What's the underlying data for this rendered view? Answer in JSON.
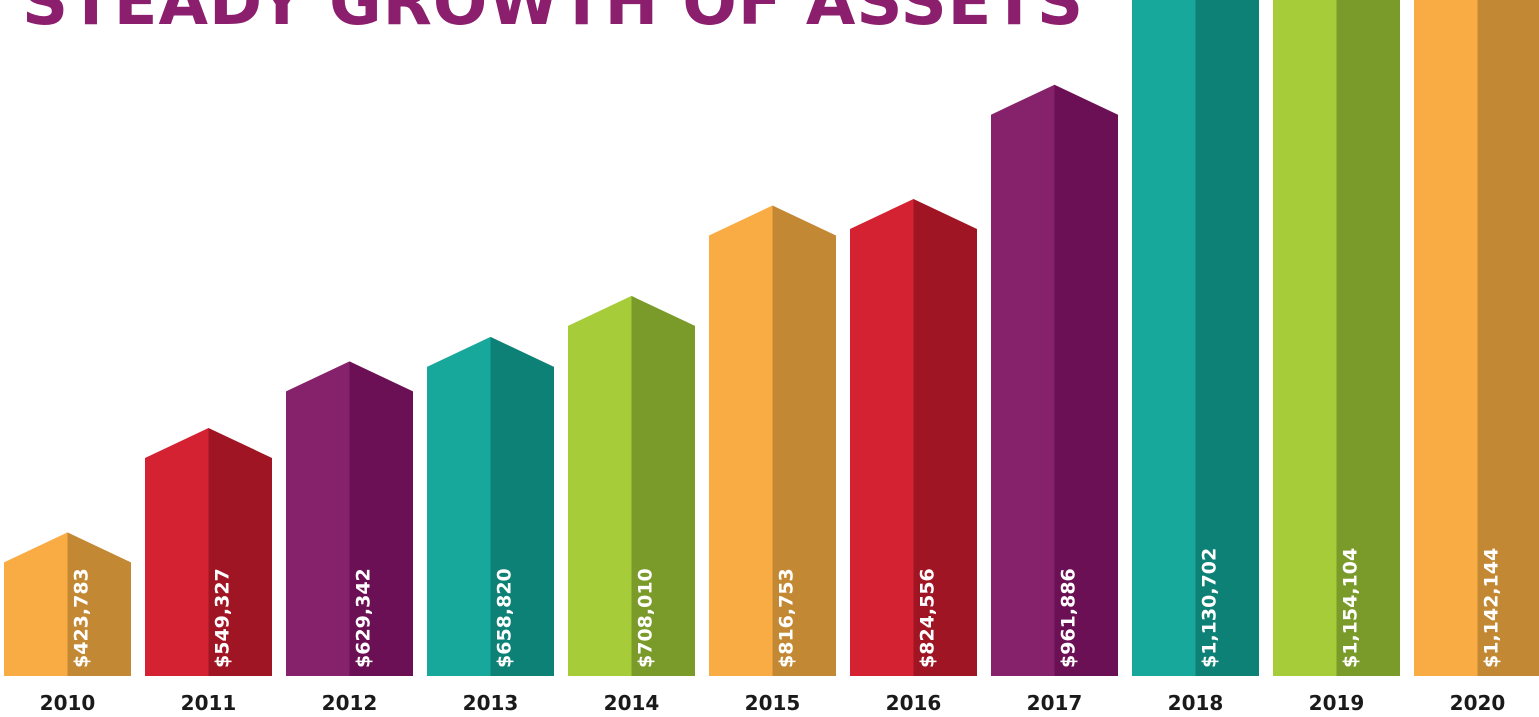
{
  "chart_data": {
    "type": "bar",
    "title": "STEADY GROWTH OF ASSETS",
    "categories": [
      "2010",
      "2011",
      "2012",
      "2013",
      "2014",
      "2015",
      "2016",
      "2017",
      "2018",
      "2019",
      "2020"
    ],
    "values": [
      423783,
      549327,
      629342,
      658820,
      708010,
      816753,
      824556,
      961886,
      1130702,
      1154104,
      1142144
    ],
    "value_labels": [
      "$423,783",
      "$549,327",
      "$629,342",
      "$658,820",
      "$708,010",
      "$816,753",
      "$824,556",
      "$961,886",
      "$1,130,702",
      "$1,154,104",
      "$1,142,144"
    ],
    "bar_colors": [
      {
        "light": "#F9AC43",
        "dark": "#C38833"
      },
      {
        "light": "#D42232",
        "dark": "#A01523"
      },
      {
        "light": "#86226C",
        "dark": "#6B1054"
      },
      {
        "light": "#17A79B",
        "dark": "#0E8176"
      },
      {
        "light": "#A6CC3A",
        "dark": "#7A9B2A"
      },
      {
        "light": "#F9AC43",
        "dark": "#C38833"
      },
      {
        "light": "#D42232",
        "dark": "#A01523"
      },
      {
        "light": "#86226C",
        "dark": "#6B1054"
      },
      {
        "light": "#17A79B",
        "dark": "#0E8176"
      },
      {
        "light": "#A6CC3A",
        "dark": "#7A9B2A"
      },
      {
        "light": "#F9AC43",
        "dark": "#C38833"
      }
    ],
    "title_color": "#8C1E6E",
    "grid": false,
    "legend": "none"
  }
}
